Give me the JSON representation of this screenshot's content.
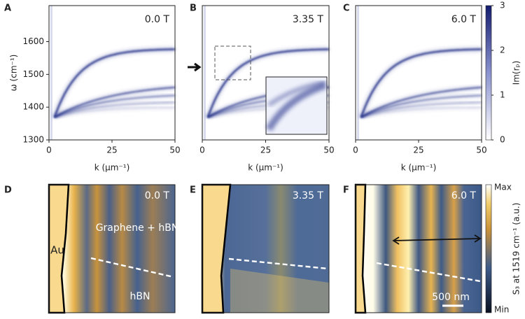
{
  "chart_data": [
    {
      "type": "heatmap",
      "panel": "A",
      "annotation": "0.0 T",
      "x_label": "k (μm⁻¹)",
      "y_label": "ω (cm⁻¹)",
      "xlim": [
        0,
        50
      ],
      "ylim": [
        1300,
        1710
      ],
      "xticks": [
        0,
        25,
        50
      ],
      "yticks": [
        1300,
        1400,
        1500,
        1600
      ],
      "color": "#1f2a85"
    },
    {
      "type": "heatmap",
      "panel": "B",
      "annotation": "3.35 T",
      "x_label": "k (μm⁻¹)",
      "xlim": [
        0,
        50
      ],
      "ylim": [
        1300,
        1710
      ],
      "xticks": [
        0,
        25,
        50
      ],
      "color": "#1f2a85"
    },
    {
      "type": "heatmap",
      "panel": "C",
      "annotation": "6.0 T",
      "x_label": "k (μm⁻¹)",
      "xlim": [
        0,
        50
      ],
      "ylim": [
        1300,
        1710
      ],
      "xticks": [
        0,
        25,
        50
      ],
      "color": "#1f2a85",
      "colorbar": {
        "label": "Im(rₚ)",
        "lim": [
          0,
          3
        ],
        "ticks": [
          0,
          1,
          2,
          3
        ]
      }
    },
    {
      "type": "image",
      "panel": "D",
      "annotation": "0.0 T",
      "labels": [
        "Graphene\n+ hBN",
        "Au",
        "hBN"
      ]
    },
    {
      "type": "image",
      "panel": "E",
      "annotation": "3.35 T"
    },
    {
      "type": "image",
      "panel": "F",
      "annotation": "6.0 T",
      "scale_bar": "500 nm",
      "colorbar": {
        "label": "S₃ at 1519 cm⁻¹ (a.u.)",
        "max": "Max",
        "min": "Min"
      }
    }
  ]
}
